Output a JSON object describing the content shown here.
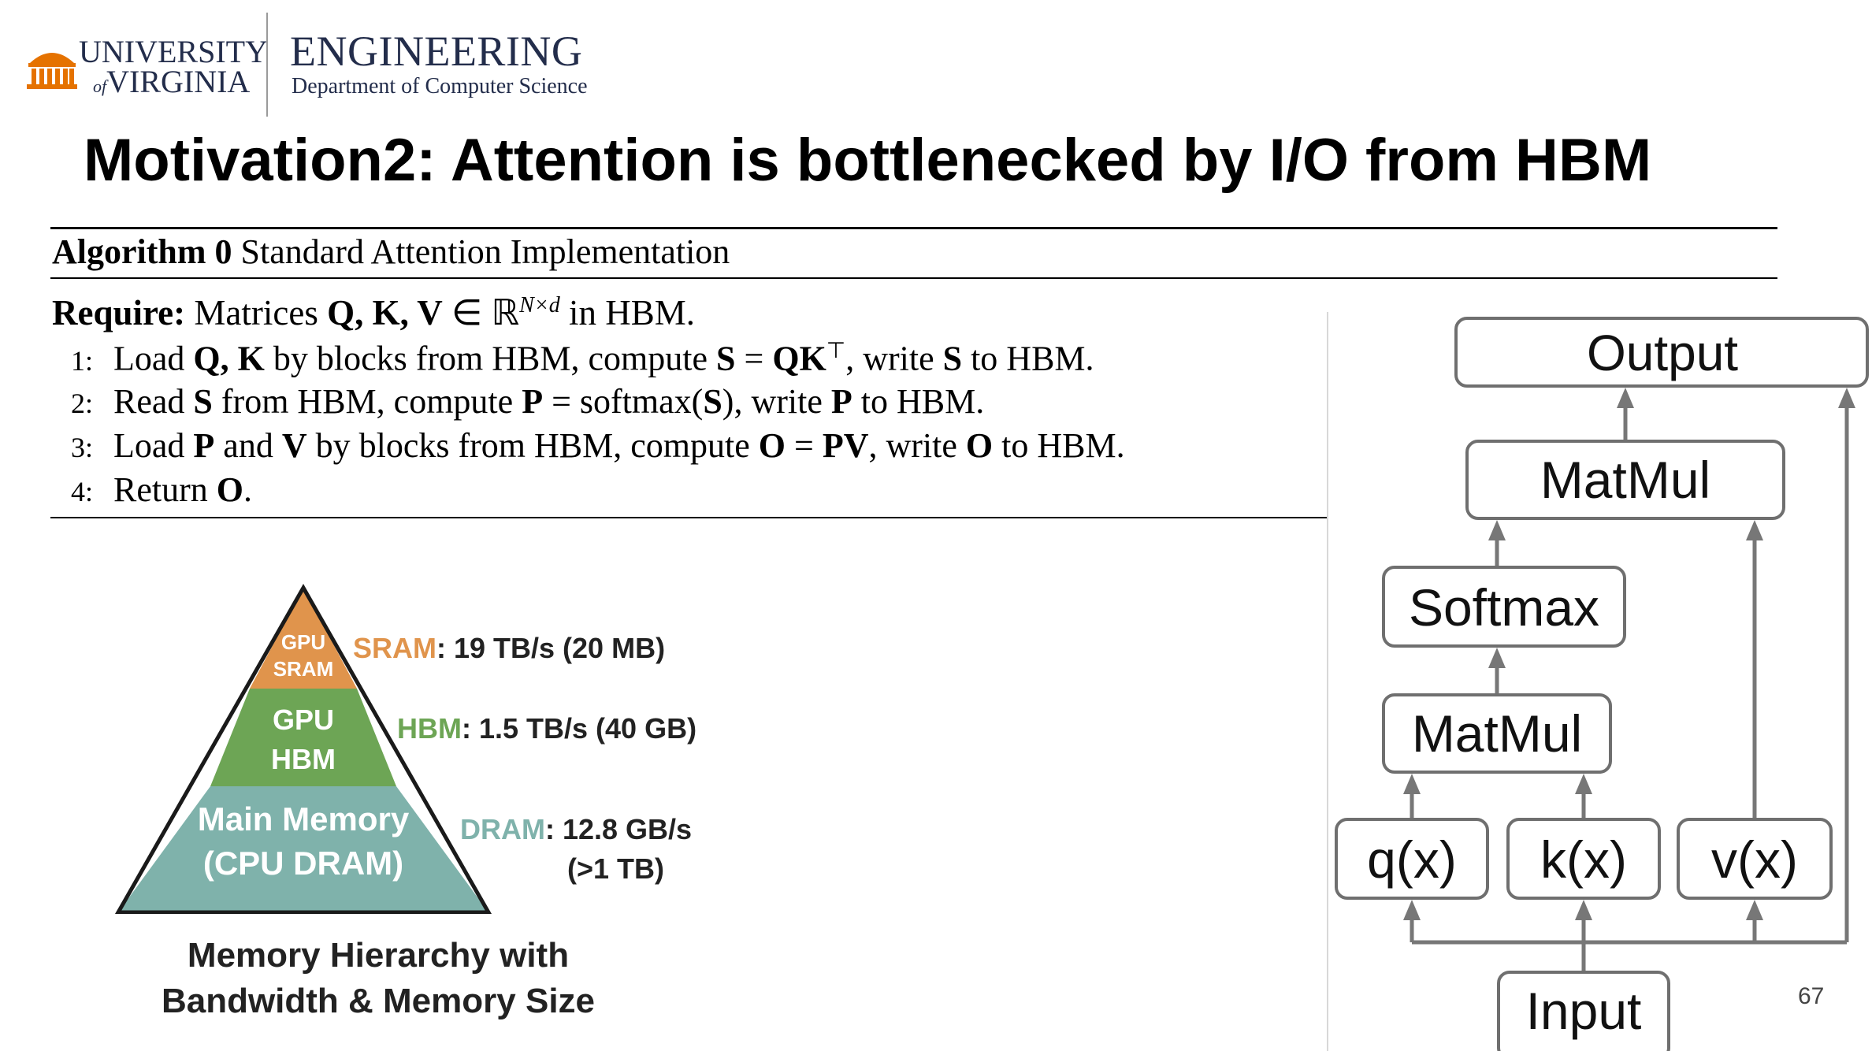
{
  "header": {
    "university_line1": "UNIVERSITY",
    "university_of": "of",
    "university_line2": "VIRGINIA",
    "engineering": "ENGINEERING",
    "department": "Department of Computer Science"
  },
  "slide": {
    "title": "Motivation2: Attention is bottlenecked by I/O from HBM",
    "page_number": "67"
  },
  "algorithm": {
    "label": "Algorithm 0",
    "name": "Standard Attention Implementation",
    "require_label": "Require:",
    "require_pre": "Matrices",
    "require_mats": "Q, K, V",
    "require_in": "∈ ℝ",
    "require_sup": "N×d",
    "require_post": "in HBM.",
    "steps": [
      {
        "num": "1:",
        "parts": [
          "Load ",
          "Q, K",
          " by blocks from HBM, compute ",
          "S",
          " = ",
          "QK",
          "⊤",
          ", write ",
          "S",
          " to HBM."
        ]
      },
      {
        "num": "2:",
        "parts": [
          "Read ",
          "S",
          " from HBM, compute ",
          "P",
          " = softmax(",
          "S",
          "), write ",
          "P",
          " to HBM."
        ]
      },
      {
        "num": "3:",
        "parts": [
          "Load ",
          "P",
          " and ",
          "V",
          " by blocks from HBM, compute ",
          "O",
          " = ",
          "PV",
          ", write ",
          "O",
          " to HBM."
        ]
      },
      {
        "num": "4:",
        "parts": [
          "Return ",
          "O",
          "."
        ]
      }
    ]
  },
  "pyramid": {
    "tiers": [
      {
        "inner_line1": "GPU",
        "inner_line2": "SRAM",
        "label_name": "SRAM",
        "label_value": ": 19 TB/s (20 MB)",
        "color": "#e0944c"
      },
      {
        "inner_line1": "GPU",
        "inner_line2": "HBM",
        "label_name": "HBM",
        "label_value": ": 1.5 TB/s (40 GB)",
        "color": "#6da555"
      },
      {
        "inner_line1": "Main Memory",
        "inner_line2": "(CPU DRAM)",
        "label_name": "DRAM",
        "label_value": ": 12.8 GB/s",
        "label_value2": "(>1 TB)",
        "color": "#7fb2ab"
      }
    ],
    "caption_line1": "Memory Hierarchy with",
    "caption_line2": "Bandwidth & Memory Size"
  },
  "diagram": {
    "nodes": {
      "output": "Output",
      "matmul_top": "MatMul",
      "softmax": "Softmax",
      "matmul_bottom": "MatMul",
      "q": "q(x)",
      "k": "k(x)",
      "v": "v(x)",
      "input": "Input"
    },
    "arrow_color": "#777777"
  }
}
